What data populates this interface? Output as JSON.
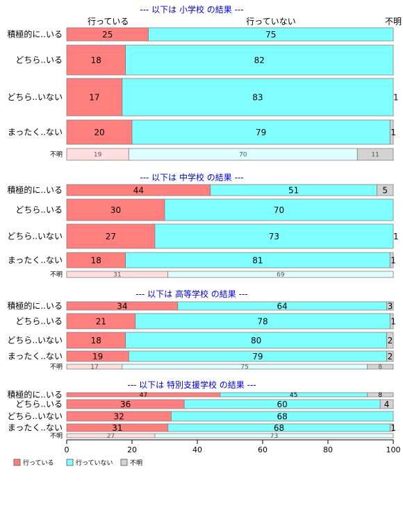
{
  "chart_data": {
    "type": "bar",
    "orientation": "horizontal",
    "stacked": true,
    "xlim": [
      0,
      100
    ],
    "x_ticks": [
      0,
      20,
      40,
      60,
      80,
      100
    ],
    "column_headers": [
      "行っている",
      "行っていない",
      "不明"
    ],
    "series_names": [
      "行っている",
      "行っていない",
      "不明"
    ],
    "colors": [
      "#ff7f7f",
      "#7fffff",
      "#d3d3d3"
    ],
    "colors_unknown_row": [
      "#ffdede",
      "#deffff",
      "#d3d3d3"
    ],
    "legend": {
      "position": "bottom-left",
      "items": [
        {
          "label": "行っている",
          "color": "#ff7f7f"
        },
        {
          "label": "行っていない",
          "color": "#7fffff"
        },
        {
          "label": "不明",
          "color": "#d3d3d3"
        }
      ]
    },
    "panels": [
      {
        "title": "--- 以下は 小学校 の結果 ---",
        "categories": [
          "積極的に..いる",
          "どちら..いる",
          "どちら..いない",
          "まったく..ない",
          "不明"
        ],
        "values": [
          [
            25,
            75,
            0
          ],
          [
            18,
            82,
            0
          ],
          [
            17,
            83,
            1
          ],
          [
            20,
            79,
            1
          ],
          [
            19,
            70,
            11
          ]
        ],
        "labels": [
          [
            "25",
            "75",
            ""
          ],
          [
            "18",
            "82",
            ""
          ],
          [
            "17",
            "83",
            "1"
          ],
          [
            "20",
            "79",
            "1"
          ],
          [
            "19",
            "70",
            "11"
          ]
        ]
      },
      {
        "title": "--- 以下は 中学校 の結果 ---",
        "categories": [
          "積極的に..いる",
          "どちら..いる",
          "どちら..いない",
          "まったく..ない",
          "不明"
        ],
        "values": [
          [
            44,
            51,
            5
          ],
          [
            30,
            70,
            0
          ],
          [
            27,
            73,
            1
          ],
          [
            18,
            81,
            1
          ],
          [
            31,
            69,
            0
          ]
        ],
        "labels": [
          [
            "44",
            "51",
            "5"
          ],
          [
            "30",
            "70",
            ""
          ],
          [
            "27",
            "73",
            "1"
          ],
          [
            "18",
            "81",
            "1"
          ],
          [
            "31",
            "69",
            ""
          ]
        ]
      },
      {
        "title": "--- 以下は 高等学校 の結果 ---",
        "categories": [
          "積極的に..いる",
          "どちら..いる",
          "どちら..いない",
          "まったく..ない",
          "不明"
        ],
        "values": [
          [
            34,
            64,
            3
          ],
          [
            21,
            78,
            1
          ],
          [
            18,
            80,
            2
          ],
          [
            19,
            79,
            2
          ],
          [
            17,
            75,
            8
          ]
        ],
        "labels": [
          [
            "34",
            "64",
            "3"
          ],
          [
            "21",
            "78",
            "1"
          ],
          [
            "18",
            "80",
            "2"
          ],
          [
            "19",
            "79",
            "2"
          ],
          [
            "17",
            "75",
            "8"
          ]
        ]
      },
      {
        "title": "--- 以下は 特別支援学校 の結果 ---",
        "categories": [
          "積極的に..いる",
          "どちら..いる",
          "どちら..いない",
          "まったく..ない",
          "不明"
        ],
        "values": [
          [
            47,
            45,
            8
          ],
          [
            36,
            60,
            4
          ],
          [
            32,
            68,
            0
          ],
          [
            31,
            68,
            1
          ],
          [
            27,
            73,
            0
          ]
        ],
        "labels": [
          [
            "47",
            "45",
            "8"
          ],
          [
            "36",
            "60",
            "4"
          ],
          [
            "32",
            "68",
            ""
          ],
          [
            "31",
            "68",
            "1"
          ],
          [
            "27",
            "73",
            ""
          ]
        ]
      }
    ]
  }
}
